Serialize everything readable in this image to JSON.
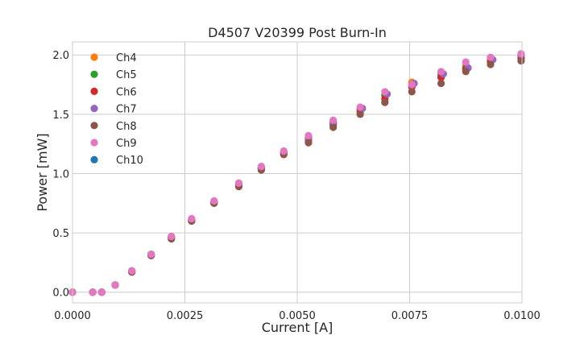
{
  "chart_data": {
    "type": "scatter",
    "title": "D4507 V20399 Post Burn-In",
    "xlabel": "Current [A]",
    "ylabel": "Power [mW]",
    "xlim": [
      0.0,
      0.01
    ],
    "ylim": [
      -0.09,
      2.11
    ],
    "x_ticks": [
      "0.0000",
      "0.0025",
      "0.0050",
      "0.0075",
      "0.0100"
    ],
    "x_tick_values": [
      0.0,
      0.0025,
      0.005,
      0.0075,
      0.01
    ],
    "y_ticks": [
      "0.0",
      "0.5",
      "1.0",
      "1.5",
      "2.0"
    ],
    "y_tick_values": [
      0.0,
      0.5,
      1.0,
      1.5,
      2.0
    ],
    "grid": true,
    "legend_position": "upper-left",
    "series": [
      {
        "name": "Ch4",
        "color": "#ff7f0e",
        "x": [
          0.0,
          0.00045,
          0.00065,
          0.00095,
          0.00132,
          0.00175,
          0.0022,
          0.00265,
          0.00315,
          0.0037,
          0.0042,
          0.0047,
          0.00525,
          0.0058,
          0.0064,
          0.00695,
          0.00755,
          0.0082,
          0.00875,
          0.0093,
          0.00998
        ],
        "y": [
          0.0,
          0.0,
          0.0,
          0.06,
          0.18,
          0.32,
          0.47,
          0.61,
          0.76,
          0.91,
          1.05,
          1.18,
          1.3,
          1.43,
          1.55,
          1.66,
          1.77,
          1.85,
          1.91,
          1.97,
          1.99
        ]
      },
      {
        "name": "Ch5",
        "color": "#2ca02c",
        "x": [
          0.0,
          0.00045,
          0.00065,
          0.00095,
          0.00132,
          0.00175,
          0.0022,
          0.00265,
          0.00315,
          0.0037,
          0.0042,
          0.0047,
          0.00525,
          0.0058,
          0.0064,
          0.00695,
          0.00755,
          0.0082,
          0.00875,
          0.0093,
          0.00998
        ],
        "y": [
          0.0,
          0.0,
          0.0,
          0.06,
          0.18,
          0.32,
          0.46,
          0.61,
          0.76,
          0.91,
          1.05,
          1.18,
          1.3,
          1.42,
          1.54,
          1.66,
          1.75,
          1.83,
          1.89,
          1.95,
          1.99
        ]
      },
      {
        "name": "Ch6",
        "color": "#d62728",
        "x": [
          0.0,
          0.00045,
          0.00065,
          0.00095,
          0.00132,
          0.00175,
          0.0022,
          0.00265,
          0.00315,
          0.0037,
          0.0042,
          0.0047,
          0.00525,
          0.0058,
          0.0064,
          0.00695,
          0.00755,
          0.0082,
          0.00875,
          0.0093,
          0.00998
        ],
        "y": [
          0.0,
          0.0,
          0.0,
          0.06,
          0.17,
          0.31,
          0.46,
          0.6,
          0.75,
          0.9,
          1.04,
          1.17,
          1.28,
          1.41,
          1.52,
          1.63,
          1.73,
          1.81,
          1.88,
          1.94,
          1.97
        ]
      },
      {
        "name": "Ch7",
        "color": "#9467bd",
        "x": [
          0.0,
          0.00045,
          0.00065,
          0.00095,
          0.00132,
          0.00175,
          0.0022,
          0.00265,
          0.00315,
          0.0037,
          0.0042,
          0.0047,
          0.00525,
          0.0058,
          0.00645,
          0.007,
          0.0076,
          0.00825,
          0.0088,
          0.00935,
          0.00998
        ],
        "y": [
          0.0,
          0.0,
          0.0,
          0.06,
          0.18,
          0.31,
          0.46,
          0.61,
          0.76,
          0.91,
          1.05,
          1.18,
          1.3,
          1.43,
          1.55,
          1.67,
          1.76,
          1.84,
          1.89,
          1.96,
          2.0
        ]
      },
      {
        "name": "Ch8",
        "color": "#8c564b",
        "x": [
          0.0,
          0.00045,
          0.00065,
          0.00095,
          0.00132,
          0.00175,
          0.0022,
          0.00265,
          0.00315,
          0.0037,
          0.0042,
          0.0047,
          0.00525,
          0.0058,
          0.0064,
          0.00695,
          0.00755,
          0.0082,
          0.00875,
          0.0093,
          0.00998
        ],
        "y": [
          0.0,
          0.0,
          0.0,
          0.06,
          0.17,
          0.31,
          0.45,
          0.6,
          0.75,
          0.89,
          1.03,
          1.16,
          1.26,
          1.39,
          1.5,
          1.6,
          1.69,
          1.76,
          1.86,
          1.92,
          1.95
        ]
      },
      {
        "name": "Ch9",
        "color": "#e377c2",
        "x": [
          0.0,
          0.00045,
          0.00065,
          0.00095,
          0.00132,
          0.00175,
          0.0022,
          0.00265,
          0.00315,
          0.0037,
          0.0042,
          0.0047,
          0.00525,
          0.0058,
          0.0064,
          0.00695,
          0.00755,
          0.0082,
          0.00875,
          0.0093,
          0.00998
        ],
        "y": [
          0.0,
          0.0,
          0.0,
          0.06,
          0.18,
          0.32,
          0.47,
          0.62,
          0.77,
          0.92,
          1.06,
          1.19,
          1.32,
          1.45,
          1.56,
          1.69,
          1.75,
          1.86,
          1.94,
          1.98,
          2.01
        ]
      },
      {
        "name": "Ch10",
        "color": "#1f77b4",
        "x": [],
        "y": []
      }
    ]
  }
}
